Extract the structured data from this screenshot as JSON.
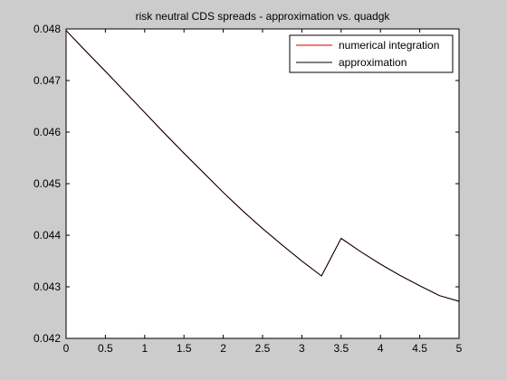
{
  "colors": {
    "background": "#cccccc",
    "axes": "#ffffff",
    "numerical": "#cc0000",
    "approximation": "#000000"
  },
  "chart_data": {
    "type": "line",
    "title": "risk neutral CDS spreads - approximation vs. quadgk",
    "xlabel": "",
    "ylabel": "",
    "xlim": [
      0,
      5
    ],
    "ylim": [
      0.042,
      0.048
    ],
    "xticks": [
      "0",
      "0.5",
      "1",
      "1.5",
      "2",
      "2.5",
      "3",
      "3.5",
      "4",
      "4.5",
      "5"
    ],
    "yticks": [
      "0.042",
      "0.043",
      "0.044",
      "0.045",
      "0.046",
      "0.047",
      "0.048"
    ],
    "grid": false,
    "legend_position": "top-right",
    "x": [
      0,
      0.25,
      0.5,
      0.75,
      1.0,
      1.25,
      1.5,
      1.75,
      2.0,
      2.25,
      2.5,
      2.75,
      3.0,
      3.25,
      3.5,
      3.75,
      4.0,
      4.25,
      4.5,
      4.75,
      5.0
    ],
    "series": [
      {
        "name": "numerical integration",
        "color": "#cc0000",
        "values": [
          0.04797,
          0.04757,
          0.04718,
          0.04678,
          0.04638,
          0.04598,
          0.04559,
          0.04521,
          0.04483,
          0.04447,
          0.04413,
          0.04381,
          0.0435,
          0.04321,
          0.04394,
          0.04368,
          0.04344,
          0.04322,
          0.04302,
          0.04283,
          0.04272
        ]
      },
      {
        "name": "approximation",
        "color": "#000000",
        "values": [
          0.04797,
          0.04757,
          0.04718,
          0.04678,
          0.04638,
          0.04598,
          0.04559,
          0.04521,
          0.04483,
          0.04447,
          0.04413,
          0.04381,
          0.0435,
          0.04321,
          0.04394,
          0.04368,
          0.04344,
          0.04322,
          0.04302,
          0.04283,
          0.04272
        ]
      }
    ]
  }
}
